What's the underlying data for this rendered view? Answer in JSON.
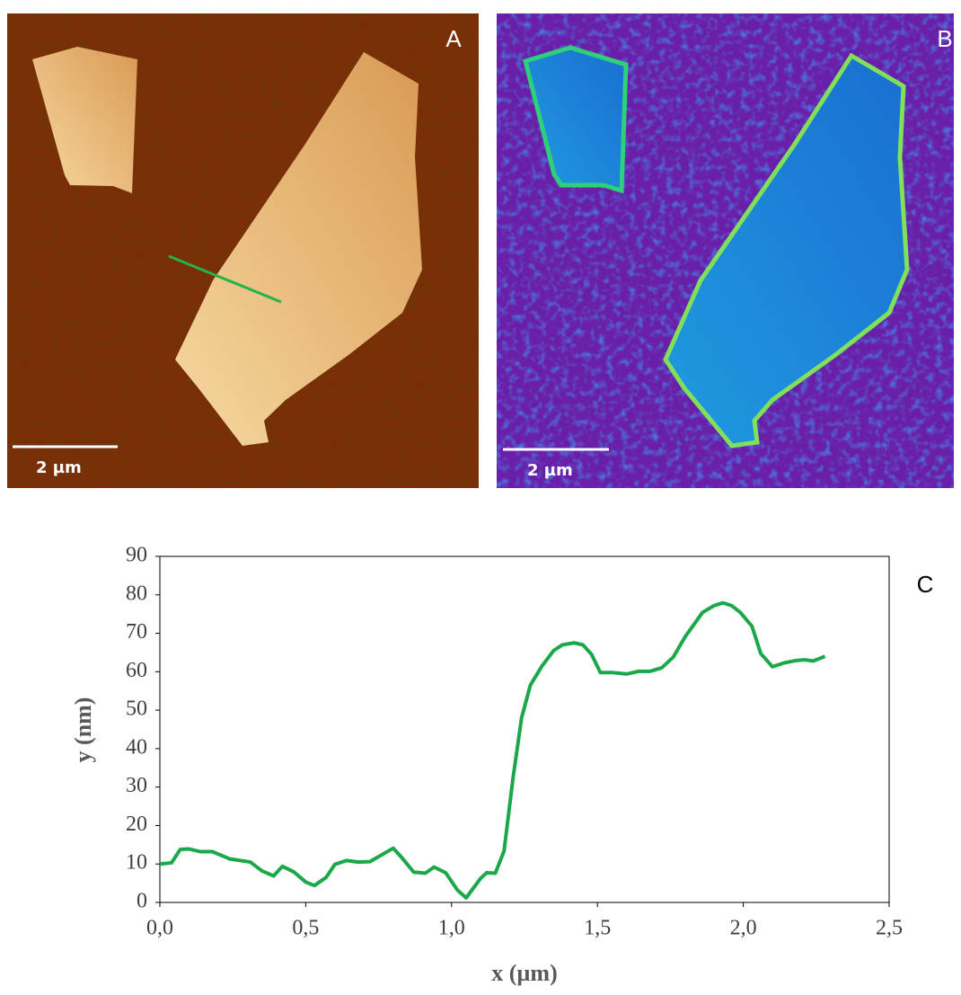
{
  "panels": [
    {
      "label": "A",
      "scale_bar": "2 µm"
    },
    {
      "label": "B",
      "scale_bar": "2 µm"
    }
  ],
  "chart_data": {
    "type": "line",
    "label": "C",
    "x_label": "x (µm)",
    "y_label": "y (nm)",
    "xlim": [
      0,
      2.5
    ],
    "xticks": [
      {
        "value": 0,
        "label": "0,0"
      },
      {
        "value": 0.5,
        "label": "0,5"
      },
      {
        "value": 1,
        "label": "1,0"
      },
      {
        "value": 1.5,
        "label": "1,5"
      },
      {
        "value": 2,
        "label": "2,0"
      },
      {
        "value": 2.5,
        "label": "2,5"
      }
    ],
    "ylim": [
      0,
      90
    ],
    "yticks": [
      0,
      10,
      20,
      30,
      40,
      50,
      60,
      70,
      80,
      90
    ],
    "grid": false,
    "x": [
      0,
      0.04,
      0.07,
      0.1,
      0.14,
      0.18,
      0.24,
      0.31,
      0.35,
      0.39,
      0.42,
      0.46,
      0.5,
      0.53,
      0.57,
      0.6,
      0.64,
      0.68,
      0.72,
      0.8,
      0.83,
      0.87,
      0.91,
      0.94,
      0.98,
      1.02,
      1.05,
      1.1,
      1.12,
      1.15,
      1.18,
      1.21,
      1.24,
      1.27,
      1.31,
      1.35,
      1.38,
      1.42,
      1.45,
      1.48,
      1.51,
      1.55,
      1.6,
      1.64,
      1.68,
      1.72,
      1.76,
      1.8,
      1.86,
      1.9,
      1.93,
      1.96,
      1.99,
      2.03,
      2.06,
      2.1,
      2.14,
      2.18,
      2.21,
      2.24,
      2.28
    ],
    "series": [
      {
        "color": "#1aa84a",
        "values": [
          10,
          10.3,
          13.8,
          13.9,
          13.2,
          13.2,
          11.3,
          10.5,
          8.2,
          6.9,
          9.4,
          7.9,
          5.3,
          4.4,
          6.5,
          9.9,
          10.9,
          10.5,
          10.6,
          14.1,
          11.6,
          7.9,
          7.6,
          9.2,
          7.7,
          3.2,
          1.2,
          6.3,
          7.7,
          7.6,
          13.4,
          32,
          48,
          56.5,
          61.5,
          65.5,
          67,
          67.5,
          67,
          64.5,
          59.8,
          59.8,
          59.4,
          60.1,
          60.1,
          61,
          63.8,
          69,
          75.4,
          77.2,
          77.9,
          77.2,
          75.4,
          71.8,
          64.7,
          61.3,
          62.3,
          62.9,
          63.1,
          62.8,
          64
        ]
      }
    ]
  }
}
